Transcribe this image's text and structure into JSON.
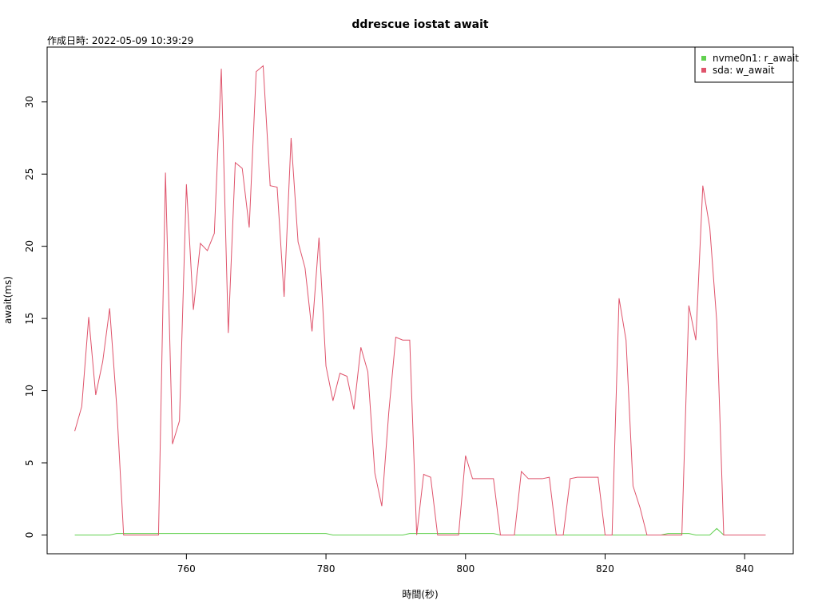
{
  "chart_data": {
    "type": "line",
    "title": "ddrescue iostat await",
    "subtitle": "作成日時: 2022-05-09 10:39:29",
    "x_label": "時間(秒)",
    "y_label": "await(ms)",
    "x": [
      744,
      745,
      746,
      747,
      748,
      749,
      750,
      751,
      752,
      753,
      754,
      755,
      756,
      757,
      758,
      759,
      760,
      761,
      762,
      763,
      764,
      765,
      766,
      767,
      768,
      769,
      770,
      771,
      772,
      773,
      774,
      775,
      776,
      777,
      778,
      779,
      780,
      781,
      782,
      783,
      784,
      785,
      786,
      787,
      788,
      789,
      790,
      791,
      792,
      793,
      794,
      795,
      796,
      797,
      798,
      799,
      800,
      801,
      802,
      803,
      804,
      805,
      806,
      807,
      808,
      809,
      810,
      811,
      812,
      813,
      814,
      815,
      816,
      817,
      818,
      819,
      820,
      821,
      822,
      823,
      824,
      825,
      826,
      827,
      828,
      829,
      830,
      831,
      832,
      833,
      834,
      835,
      836,
      837,
      838,
      839,
      840,
      841,
      842,
      843
    ],
    "series": [
      {
        "name": "nvme0n1: r_await",
        "color": "#61D04F",
        "values": [
          0,
          0,
          0,
          0,
          0,
          0,
          0.1,
          0.1,
          0.1,
          0.1,
          0.1,
          0.1,
          0.1,
          0.1,
          0.1,
          0.1,
          0.1,
          0.1,
          0.1,
          0.1,
          0.1,
          0.1,
          0.1,
          0.1,
          0.1,
          0.1,
          0.1,
          0.1,
          0.1,
          0.1,
          0.1,
          0.1,
          0.1,
          0.1,
          0.1,
          0.1,
          0.1,
          0,
          0,
          0,
          0,
          0,
          0,
          0,
          0,
          0,
          0,
          0,
          0.1,
          0.1,
          0.1,
          0.1,
          0.1,
          0.1,
          0.1,
          0.1,
          0.1,
          0.1,
          0.1,
          0.1,
          0.1,
          0,
          0,
          0,
          0,
          0,
          0,
          0,
          0,
          0,
          0,
          0,
          0,
          0,
          0,
          0,
          0,
          0,
          0,
          0,
          0,
          0,
          0,
          0,
          0,
          0.1,
          0.1,
          0.1,
          0.1,
          0,
          0,
          0,
          0.45,
          0,
          0,
          0,
          0,
          0,
          0,
          0
        ]
      },
      {
        "name": "sda: w_await",
        "color": "#DF536B",
        "values": [
          7.2,
          8.9,
          15.1,
          9.7,
          12.0,
          15.7,
          9.0,
          0,
          0,
          0,
          0,
          0,
          0,
          25.1,
          6.3,
          7.9,
          24.3,
          15.6,
          20.2,
          19.7,
          20.9,
          32.3,
          14.0,
          25.8,
          25.4,
          21.3,
          32.1,
          32.5,
          24.2,
          24.1,
          16.5,
          27.5,
          20.3,
          18.5,
          14.1,
          20.6,
          11.7,
          9.3,
          11.2,
          11.0,
          8.7,
          13.0,
          11.3,
          4.3,
          2.0,
          8.5,
          13.7,
          13.5,
          13.5,
          0,
          4.2,
          4.0,
          0,
          0,
          0,
          0,
          5.5,
          3.9,
          3.9,
          3.9,
          3.9,
          0,
          0,
          0,
          4.4,
          3.9,
          3.9,
          3.9,
          4.0,
          0,
          0,
          3.9,
          4.0,
          4.0,
          4.0,
          4.0,
          0,
          0,
          16.4,
          13.5,
          3.4,
          1.9,
          0,
          0,
          0,
          0,
          0,
          0,
          15.9,
          13.5,
          24.2,
          21.3,
          14.8,
          0,
          0,
          0,
          0,
          0,
          0,
          0
        ]
      }
    ],
    "xlim": [
      740.04,
      846.96
    ],
    "xticks": [
      760,
      780,
      800,
      820,
      840
    ],
    "ylim": [
      -1.3,
      33.8
    ],
    "yticks": [
      0,
      5,
      10,
      15,
      20,
      25,
      30
    ],
    "legend": "topright"
  }
}
